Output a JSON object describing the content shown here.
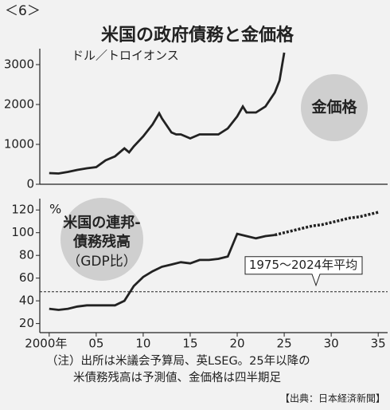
{
  "header": "＜6＞",
  "title": "米国の政府債務と金価格",
  "chart_data": [
    {
      "type": "line",
      "y_label": "ドル／トロイオンス",
      "annotation": "金価格",
      "xlim": [
        1999,
        2036
      ],
      "ylim": [
        0,
        3400
      ],
      "yticks": [
        0,
        1000,
        2000,
        3000
      ],
      "series": [
        {
          "color": "#222222",
          "x": [
            2000,
            2001,
            2002,
            2003,
            2004,
            2005,
            2006,
            2007,
            2008,
            2008.5,
            2009,
            2010,
            2011,
            2011.7,
            2012,
            2013,
            2013.5,
            2014,
            2015,
            2016,
            2017,
            2018,
            2019,
            2020,
            2020.6,
            2021,
            2022,
            2023,
            2024,
            2024.5,
            2025
          ],
          "values": [
            280,
            270,
            310,
            360,
            400,
            430,
            600,
            700,
            900,
            800,
            950,
            1200,
            1500,
            1780,
            1650,
            1300,
            1250,
            1250,
            1150,
            1250,
            1250,
            1250,
            1400,
            1700,
            1950,
            1800,
            1800,
            1950,
            2300,
            2600,
            3300
          ]
        }
      ]
    },
    {
      "type": "line",
      "y_label": "%",
      "annotation": [
        "米国の連邦-",
        "債務残高",
        "（GDP比）"
      ],
      "xlim": [
        1999,
        2036
      ],
      "ylim": [
        12,
        130
      ],
      "yticks": [
        20,
        40,
        60,
        80,
        100,
        120
      ],
      "xticks": [
        {
          "value": 2000,
          "label": "2000年"
        },
        {
          "value": 2005,
          "label": "05"
        },
        {
          "value": 2010,
          "label": "10"
        },
        {
          "value": 2015,
          "label": "15"
        },
        {
          "value": 2020,
          "label": "20"
        },
        {
          "value": 2025,
          "label": "25"
        },
        {
          "value": 2030,
          "label": "30"
        },
        {
          "value": 2035,
          "label": "35"
        }
      ],
      "reference": {
        "value": 48,
        "label": "1975～2024年平均"
      },
      "series": [
        {
          "color": "#222222",
          "dash": false,
          "x": [
            2000,
            2001,
            2002,
            2003,
            2004,
            2005,
            2006,
            2007,
            2008,
            2009,
            2010,
            2011,
            2012,
            2013,
            2014,
            2015,
            2016,
            2017,
            2018,
            2019,
            2020,
            2021,
            2022,
            2023,
            2024
          ],
          "values": [
            33,
            32,
            33,
            35,
            36,
            36,
            36,
            36,
            40,
            53,
            61,
            66,
            70,
            72,
            74,
            73,
            76,
            76,
            77,
            79,
            99,
            97,
            95,
            97,
            98
          ]
        },
        {
          "color": "#222222",
          "dash": true,
          "x": [
            2024,
            2025,
            2026,
            2027,
            2028,
            2029,
            2030,
            2031,
            2032,
            2033,
            2034,
            2035
          ],
          "values": [
            98,
            100,
            102,
            104,
            106,
            107,
            109,
            111,
            113,
            114,
            116,
            118
          ]
        }
      ]
    }
  ],
  "notes": [
    "（注）出所は米議会予算局、英LSEG。25年以降の",
    "米債務残高は予測値、金価格は四半期足"
  ],
  "source": "【出典：日本経済新聞】"
}
